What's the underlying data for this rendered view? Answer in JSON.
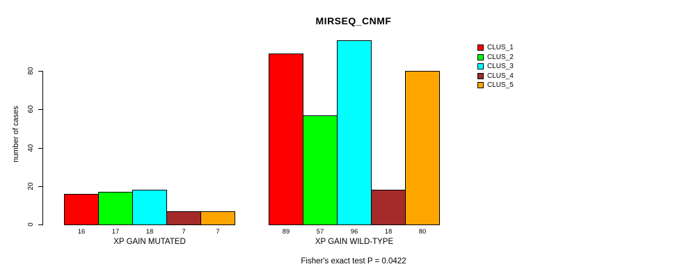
{
  "chart_data": {
    "type": "bar",
    "title": "MIRSEQ_CNMF",
    "ylabel": "number of cases",
    "xlabel": "",
    "annotation": "Fisher's exact test P = 0.0422",
    "groups": [
      "XP GAIN MUTATED",
      "XP GAIN WILD-TYPE"
    ],
    "series": [
      {
        "name": "CLUS_1",
        "color": "#FF0000",
        "values": [
          16,
          89
        ]
      },
      {
        "name": "CLUS_2",
        "color": "#00FF00",
        "values": [
          17,
          57
        ]
      },
      {
        "name": "CLUS_3",
        "color": "#00FFFF",
        "values": [
          18,
          96
        ]
      },
      {
        "name": "CLUS_4",
        "color": "#A52A2A",
        "values": [
          7,
          18
        ]
      },
      {
        "name": "CLUS_5",
        "color": "#FFA500",
        "values": [
          7,
          80
        ]
      }
    ],
    "y_axis": {
      "ticks": [
        0,
        20,
        40,
        60,
        80
      ],
      "range": [
        0,
        96
      ]
    },
    "legend_position": "top-right",
    "grid": false,
    "bar_border_color": "#000000",
    "background": "#FFFFFF"
  }
}
